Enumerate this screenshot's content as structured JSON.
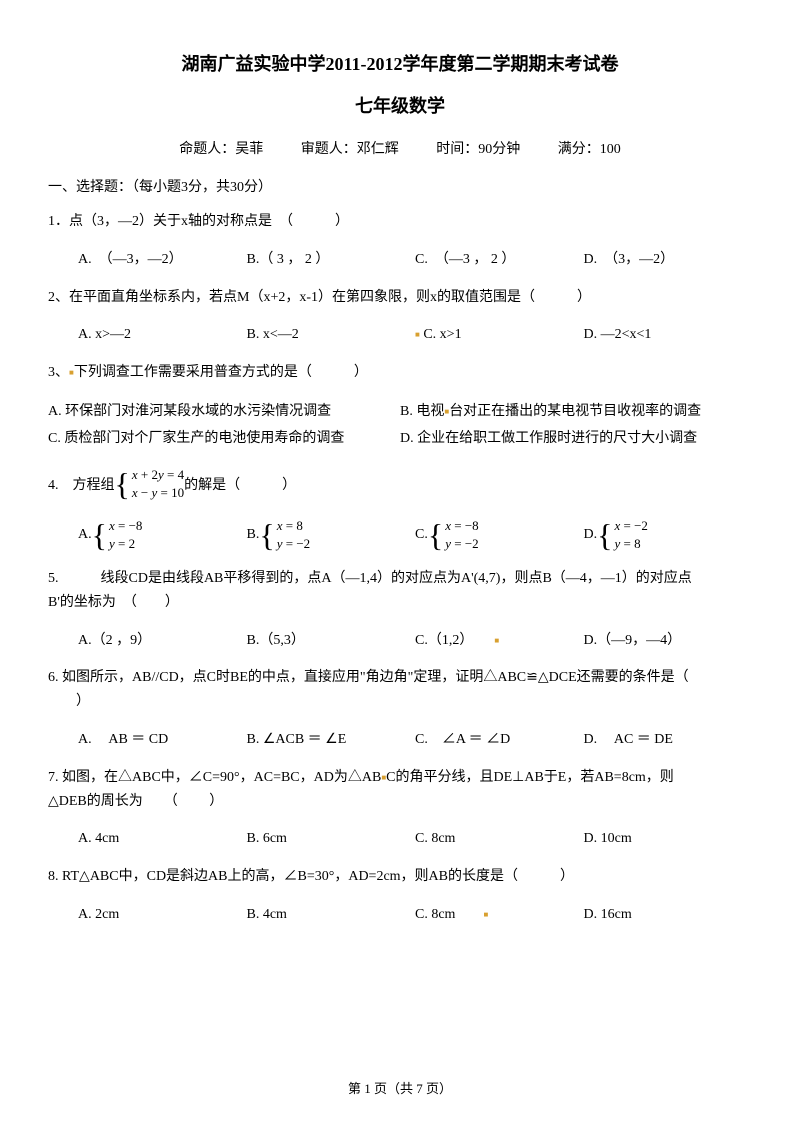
{
  "title1": "湖南广益实验中学2011-2012学年度第二学期期末考试卷",
  "title2": "七年级数学",
  "info": {
    "author": "命题人：吴菲",
    "reviewer": "审题人：邓仁辉",
    "time": "时间：90分钟",
    "score": "满分：100"
  },
  "section1_header": "一、选择题：（每小题3分，共30分）",
  "q1": {
    "text": "1．点（3，—2）关于x轴的对称点是　（　　　）",
    "a": "A.　（—3，—2）",
    "b": "B.（ 3 ， 2 ）",
    "c": "C.　（—3 ， 2 ）",
    "d": "D.　（3，—2）"
  },
  "q2": {
    "text": "2、在平面直角坐标系内，若点M（x+2，x-1）在第四象限，则x的取值范围是（　　　）",
    "a": "A. x>—2",
    "b": "B. x<—2",
    "c": "C. x>1",
    "d": "D. —2<x<1"
  },
  "q3": {
    "text": "3、下列调查工作需要采用普查方式的是（　　　）",
    "a": "A. 环保部门对淮河某段水域的水污染情况调查",
    "b": "B. 电视台对正在播出的某电视节目收视率的调查",
    "c": "C. 质检部门对个厂家生产的电池使用寿命的调查",
    "d": "D. 企业在给职工做工作服时进行的尺寸大小调查"
  },
  "q4": {
    "prefix": "4.　方程组",
    "eq1": "x + 2y = 4",
    "eq2": "x − y = 10",
    "suffix": " 的解是（　　　）",
    "a_label": "A.",
    "a_eq1": "x = −8",
    "a_eq2": "y = 2",
    "b_label": "B.",
    "b_eq1": "x = 8",
    "b_eq2": "y = −2",
    "c_label": "C.",
    "c_eq1": "x = −8",
    "c_eq2": "y = −2",
    "d_label": "D.",
    "d_eq1": "x = −2",
    "d_eq2": "y = 8"
  },
  "q5": {
    "text1": "5.　　　线段CD是由线段AB平移得到的，点A（—1,4）的对应点为A'(4,7)，则点B（—4，—1）的对应点",
    "text2": "B'的坐标为　（　　）",
    "a": "A.（2 ，9）",
    "b": "B.（5,3）",
    "c": "C.（1,2）",
    "d": "D.（—9，—4）"
  },
  "q6": {
    "text1": "6. 如图所示，AB//CD，点C时BE的中点，直接应用\"角边角\"定理，证明△ABC≌△DCE还需要的条件是（",
    "text2": "　　）",
    "a": "A.　 AB ＝ CD",
    "b": "B. ∠ACB ＝ ∠E",
    "c": "C.　∠A ＝ ∠D",
    "d": "D.　 AC ＝ DE"
  },
  "q7": {
    "text1": "7. 如图，在△ABC中，∠C=90°，AC=BC，AD为△ABC的角平分线，且DE⊥AB于E，若AB=8cm，则",
    "text2": "△DEB的周长为　　（　　 ）",
    "a": "A. 4cm",
    "b": "B. 6cm",
    "c": "C. 8cm",
    "d": "D. 10cm"
  },
  "q8": {
    "text": "8. RT△ABC中，CD是斜边AB上的高，∠B=30°，AD=2cm，则AB的长度是（　　　）",
    "a": "A. 2cm",
    "b": "B. 4cm",
    "c": "C. 8cm",
    "d": "D. 16cm"
  },
  "footer": "第 1 页（共 7 页）"
}
